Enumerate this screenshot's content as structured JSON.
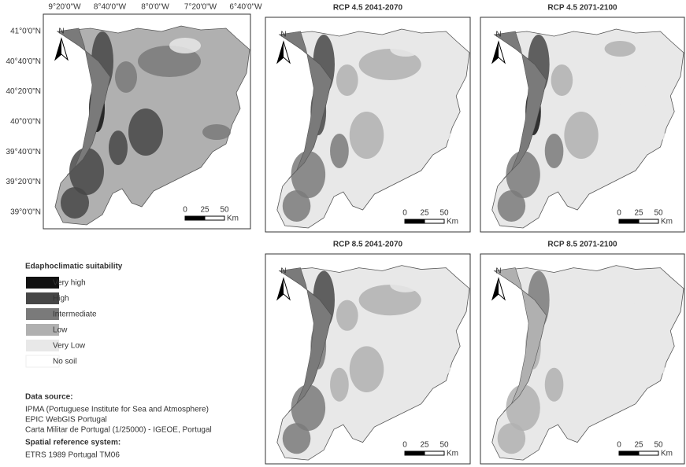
{
  "coordinates": {
    "longitudes": [
      "9°20'0\"W",
      "8°40'0\"W",
      "8°0'0\"W",
      "7°20'0\"W",
      "6°40'0\"W"
    ],
    "latitudes": [
      "41°0'0\"N",
      "40°40'0\"N",
      "40°20'0\"N",
      "40°0'0\"N",
      "39°40'0\"N",
      "39°20'0\"N",
      "39°0'0\"N"
    ]
  },
  "panels": [
    {
      "north": "N",
      "scale": [
        "0",
        "25",
        "50"
      ],
      "unit": "Km"
    },
    {
      "title": "RCP 4.5 2041-2070",
      "north": "N",
      "scale": [
        "0",
        "25",
        "50"
      ],
      "unit": "Km"
    },
    {
      "title": "RCP 4.5 2071-2100",
      "north": "N",
      "scale": [
        "0",
        "25",
        "50"
      ],
      "unit": "Km"
    },
    {
      "title": "RCP 8.5 2041-2070",
      "north": "N",
      "scale": [
        "0",
        "25",
        "50"
      ],
      "unit": "Km"
    },
    {
      "title": "RCP 8.5 2071-2100",
      "north": "N",
      "scale": [
        "0",
        "25",
        "50"
      ],
      "unit": "Km"
    }
  ],
  "legend": {
    "title": "Edaphoclimatic suitability",
    "items": [
      {
        "label": "Very high",
        "color": "#111111"
      },
      {
        "label": "High",
        "color": "#474747"
      },
      {
        "label": "Intermediate",
        "color": "#7a7a7a"
      },
      {
        "label": "Low",
        "color": "#b0b0b0"
      },
      {
        "label": "Very Low",
        "color": "#e8e8e8"
      },
      {
        "label": "No soil",
        "color": "#ffffff"
      }
    ]
  },
  "source": {
    "heading": "Data source:",
    "lines": [
      "IPMA (Portuguese Institute for Sea and Atmosphere)",
      "EPIC WebGIS Portugal",
      "Carta Militar de Portugal (1/25000) - IGEOE, Portugal"
    ],
    "srs_heading": "Spatial reference system:",
    "srs": "ETRS 1989 Portugal TM06"
  }
}
